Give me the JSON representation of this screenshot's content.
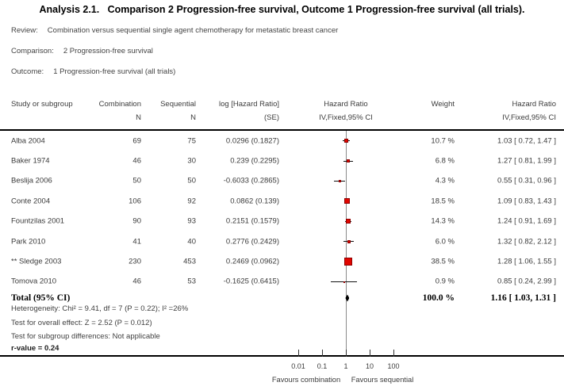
{
  "title": "Analysis 2.1.   Comparison 2 Progression-free survival, Outcome 1 Progression-free survival (all trials).",
  "meta": {
    "review_label": "Review:",
    "review_value": "Combination versus sequential single agent chemotherapy for metastatic breast cancer",
    "comparison_label": "Comparison:",
    "comparison_value": "2 Progression-free survival",
    "outcome_label": "Outcome:",
    "outcome_value": "1 Progression-free survival (all trials)"
  },
  "header": {
    "study": "Study or subgroup",
    "group1_line1": "Combination",
    "group1_line2": "N",
    "group2_line1": "Sequential",
    "group2_line2": "N",
    "loghr_line1": "log [Hazard Ratio]",
    "loghr_line2": "(SE)",
    "plot_line1": "Hazard Ratio",
    "plot_line2": "IV,Fixed,95% CI",
    "weight": "Weight",
    "hr_line1": "Hazard Ratio",
    "hr_line2": "IV,Fixed,95% CI"
  },
  "rows": [
    {
      "study": "Alba 2004",
      "n1": "69",
      "n2": "75",
      "loghr": "0.0296 (0.1827)",
      "weight": "10.7 %",
      "ci": "1.03 [ 0.72, 1.47 ]"
    },
    {
      "study": "Baker 1974",
      "n1": "46",
      "n2": "30",
      "loghr": "0.239 (0.2295)",
      "weight": "6.8 %",
      "ci": "1.27 [ 0.81, 1.99 ]"
    },
    {
      "study": "Beslija 2006",
      "n1": "50",
      "n2": "50",
      "loghr": "-0.6033 (0.2865)",
      "weight": "4.3 %",
      "ci": "0.55 [ 0.31, 0.96 ]"
    },
    {
      "study": "Conte 2004",
      "n1": "106",
      "n2": "92",
      "loghr": "0.0862 (0.139)",
      "weight": "18.5 %",
      "ci": "1.09 [ 0.83, 1.43 ]"
    },
    {
      "study": "Fountzilas 2001",
      "n1": "90",
      "n2": "93",
      "loghr": "0.2151 (0.1579)",
      "weight": "14.3 %",
      "ci": "1.24 [ 0.91, 1.69 ]"
    },
    {
      "study": "Park 2010",
      "n1": "41",
      "n2": "40",
      "loghr": "0.2776 (0.2429)",
      "weight": "6.0 %",
      "ci": "1.32 [ 0.82, 2.12 ]"
    },
    {
      "study": "** Sledge 2003",
      "n1": "230",
      "n2": "453",
      "loghr": "0.2469 (0.0962)",
      "weight": "38.5 %",
      "ci": "1.28 [ 1.06, 1.55 ]"
    },
    {
      "study": "Tomova 2010",
      "n1": "46",
      "n2": "53",
      "loghr": "-0.1625 (0.6415)",
      "weight": "0.9 %",
      "ci": "0.85 [ 0.24, 2.99 ]"
    }
  ],
  "total": {
    "label": "Total (95% CI)",
    "weight": "100.0 %",
    "ci": "1.16 [ 1.03, 1.31 ]"
  },
  "footer": {
    "heterogeneity": "Heterogeneity: Chi² = 9.41, df = 7 (P = 0.22); I² =26%",
    "overall": "Test for overall effect: Z = 2.52 (P = 0.012)",
    "subgroup": "Test for subgroup differences: Not applicable",
    "rvalue": "r-value = 0.24"
  },
  "axis": {
    "tick_labels": [
      "0.01",
      "0.1",
      "1",
      "10",
      "100"
    ],
    "favours_left": "Favours combination",
    "favours_right": "Favours sequential"
  },
  "colors": {
    "marker_fill": "#e10600",
    "marker_border": "#8f0000",
    "ci_line": "#111111",
    "center_line": "#8a8a8a",
    "diamond": "#000000"
  },
  "chart_data": {
    "type": "forest",
    "x_scale": "log10",
    "x_ticks": [
      0.01,
      0.1,
      1,
      10,
      100
    ],
    "null_line": 1,
    "effect_measure": "Hazard Ratio (IV,Fixed,95% CI)",
    "studies": [
      {
        "name": "Alba 2004",
        "hr": 1.03,
        "lo": 0.72,
        "hi": 1.47,
        "weight_pct": 10.7
      },
      {
        "name": "Baker 1974",
        "hr": 1.27,
        "lo": 0.81,
        "hi": 1.99,
        "weight_pct": 6.8
      },
      {
        "name": "Beslija 2006",
        "hr": 0.55,
        "lo": 0.31,
        "hi": 0.96,
        "weight_pct": 4.3
      },
      {
        "name": "Conte 2004",
        "hr": 1.09,
        "lo": 0.83,
        "hi": 1.43,
        "weight_pct": 18.5
      },
      {
        "name": "Fountzilas 2001",
        "hr": 1.24,
        "lo": 0.91,
        "hi": 1.69,
        "weight_pct": 14.3
      },
      {
        "name": "Park 2010",
        "hr": 1.32,
        "lo": 0.82,
        "hi": 2.12,
        "weight_pct": 6.0
      },
      {
        "name": "Sledge 2003",
        "hr": 1.28,
        "lo": 1.06,
        "hi": 1.55,
        "weight_pct": 38.5
      },
      {
        "name": "Tomova 2010",
        "hr": 0.85,
        "lo": 0.24,
        "hi": 2.99,
        "weight_pct": 0.9
      }
    ],
    "total": {
      "name": "Total (95% CI)",
      "hr": 1.16,
      "lo": 1.03,
      "hi": 1.31,
      "weight_pct": 100.0
    }
  }
}
